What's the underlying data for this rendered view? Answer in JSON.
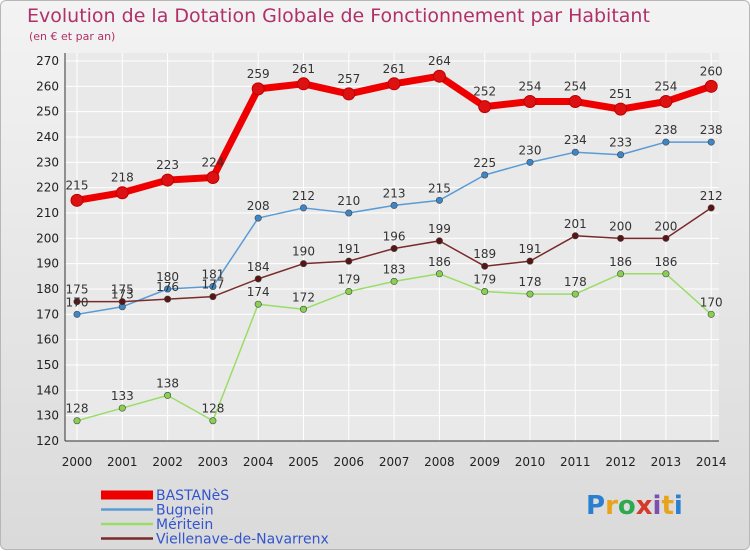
{
  "header": {
    "title": "Evolution de la Dotation Globale de Fonctionnement par Habitant",
    "subtitle": "(en € et par an)"
  },
  "logo": {
    "text": "Proxiti",
    "colors": [
      "#2a7fd0",
      "#e8a21b",
      "#2fa84f",
      "#d63a2a",
      "#7d4db0",
      "#e8a21b",
      "#2a7fd0"
    ]
  },
  "colors": {
    "title": "#b0306a",
    "grid": "#ffffff"
  },
  "chart_data": {
    "type": "line",
    "title": "Evolution de la Dotation Globale de Fonctionnement par Habitant",
    "subtitle": "(en € et par an)",
    "xlabel": "",
    "ylabel": "",
    "x": [
      "2000",
      "2001",
      "2002",
      "2003",
      "2004",
      "2005",
      "2006",
      "2007",
      "2008",
      "2009",
      "2010",
      "2011",
      "2012",
      "2013",
      "2014"
    ],
    "ylim": [
      120,
      270
    ],
    "yticks": [
      120,
      130,
      140,
      150,
      160,
      170,
      180,
      190,
      200,
      210,
      220,
      230,
      240,
      250,
      260,
      270
    ],
    "grid": true,
    "legend": "bottom-left",
    "series": [
      {
        "name": "BASTANèS",
        "color": "#ee0000",
        "marker": "#dd1111",
        "width": 7,
        "values": [
          215,
          218,
          223,
          224,
          259,
          261,
          257,
          261,
          264,
          252,
          254,
          254,
          251,
          254,
          260
        ]
      },
      {
        "name": "Bugnein",
        "color": "#5b9bd5",
        "marker": "#3d86c8",
        "width": 1.5,
        "values": [
          170,
          173,
          180,
          181,
          208,
          212,
          210,
          213,
          215,
          225,
          230,
          234,
          233,
          238,
          238
        ]
      },
      {
        "name": "Méritein",
        "color": "#99dd66",
        "marker": "#88d050",
        "width": 1.5,
        "values": [
          128,
          133,
          138,
          128,
          174,
          172,
          179,
          183,
          186,
          179,
          178,
          178,
          186,
          186,
          170
        ]
      },
      {
        "name": "Viellenave-de-Navarrenx",
        "color": "#7a2a2a",
        "marker": "#5a1414",
        "width": 1.5,
        "values": [
          175,
          175,
          176,
          177,
          184,
          190,
          191,
          196,
          199,
          189,
          191,
          201,
          200,
          200,
          212
        ]
      }
    ],
    "data_labels": {
      "BASTANèS": [
        "215",
        "218",
        "223",
        "224",
        "259",
        "261",
        "257",
        "261",
        "264",
        "252",
        "254",
        "254",
        "251",
        "254",
        "260"
      ],
      "Bugnein": [
        "170",
        "173",
        "180",
        "181",
        "208",
        "212",
        "210",
        "213",
        "215",
        "225",
        "230",
        "234",
        "233",
        "238",
        "238"
      ],
      "Méritein": [
        "128",
        "133",
        "138",
        "128",
        "174",
        "172",
        "179",
        "183",
        "186",
        "179",
        "178",
        "178",
        "186",
        "186",
        "170"
      ],
      "Viellenave-de-Navarrenx": [
        "175",
        "175",
        "176",
        "177",
        "184",
        "190",
        "191",
        "196",
        "199",
        "189",
        "191",
        "201",
        "200",
        "200",
        "212"
      ]
    }
  }
}
